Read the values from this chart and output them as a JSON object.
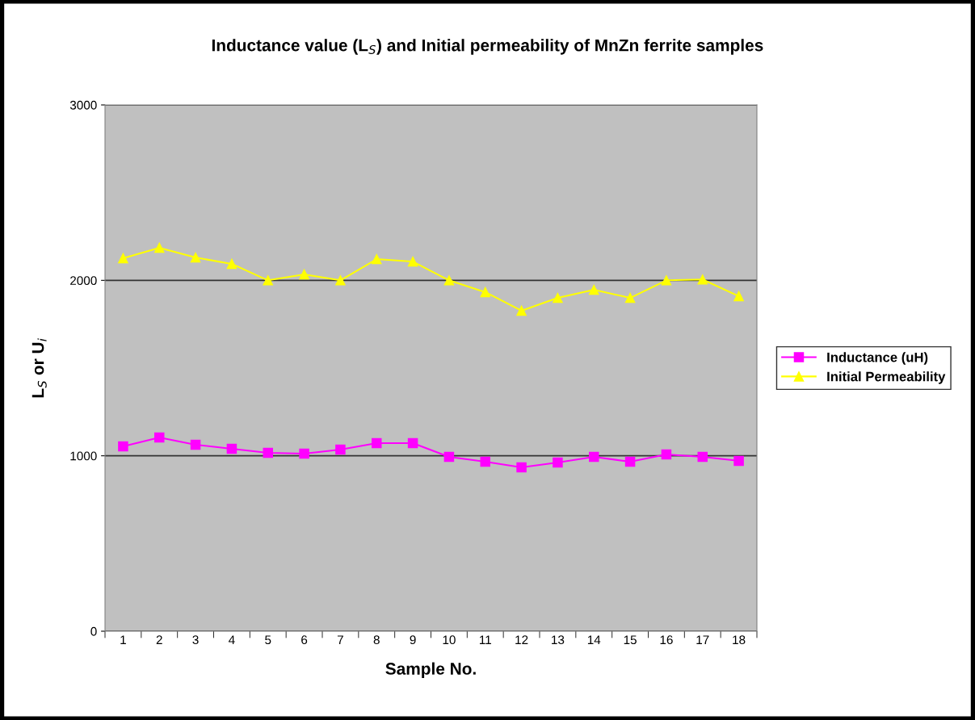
{
  "chart_data": {
    "type": "line",
    "title": "Inductance value (L$_{S}$) and Initial permeability of MnZn ferrite samples",
    "xlabel": "Sample No.",
    "ylabel": "L$_{S}$ or U$_{i}$",
    "categories": [
      "1",
      "2",
      "3",
      "4",
      "5",
      "6",
      "7",
      "8",
      "9",
      "10",
      "11",
      "12",
      "13",
      "14",
      "15",
      "16",
      "17",
      "18"
    ],
    "series": [
      {
        "name": "Inductance (uH)",
        "color": "#ff00ff",
        "marker": "square",
        "values": [
          1054,
          1104,
          1063,
          1040,
          1017,
          1012,
          1035,
          1072,
          1072,
          994,
          966,
          934,
          962,
          994,
          966,
          1008,
          994,
          971
        ]
      },
      {
        "name": "Initial Permeability",
        "color": "#ffff00",
        "marker": "triangle",
        "values": [
          2126,
          2186,
          2130,
          2094,
          2000,
          2034,
          2000,
          2121,
          2107,
          2000,
          1933,
          1827,
          1900,
          1946,
          1900,
          2000,
          2005,
          1910
        ]
      }
    ],
    "ylim": [
      0,
      3000
    ],
    "yticks": [
      0,
      1000,
      2000,
      3000
    ],
    "grid": "y",
    "legend": "right"
  }
}
